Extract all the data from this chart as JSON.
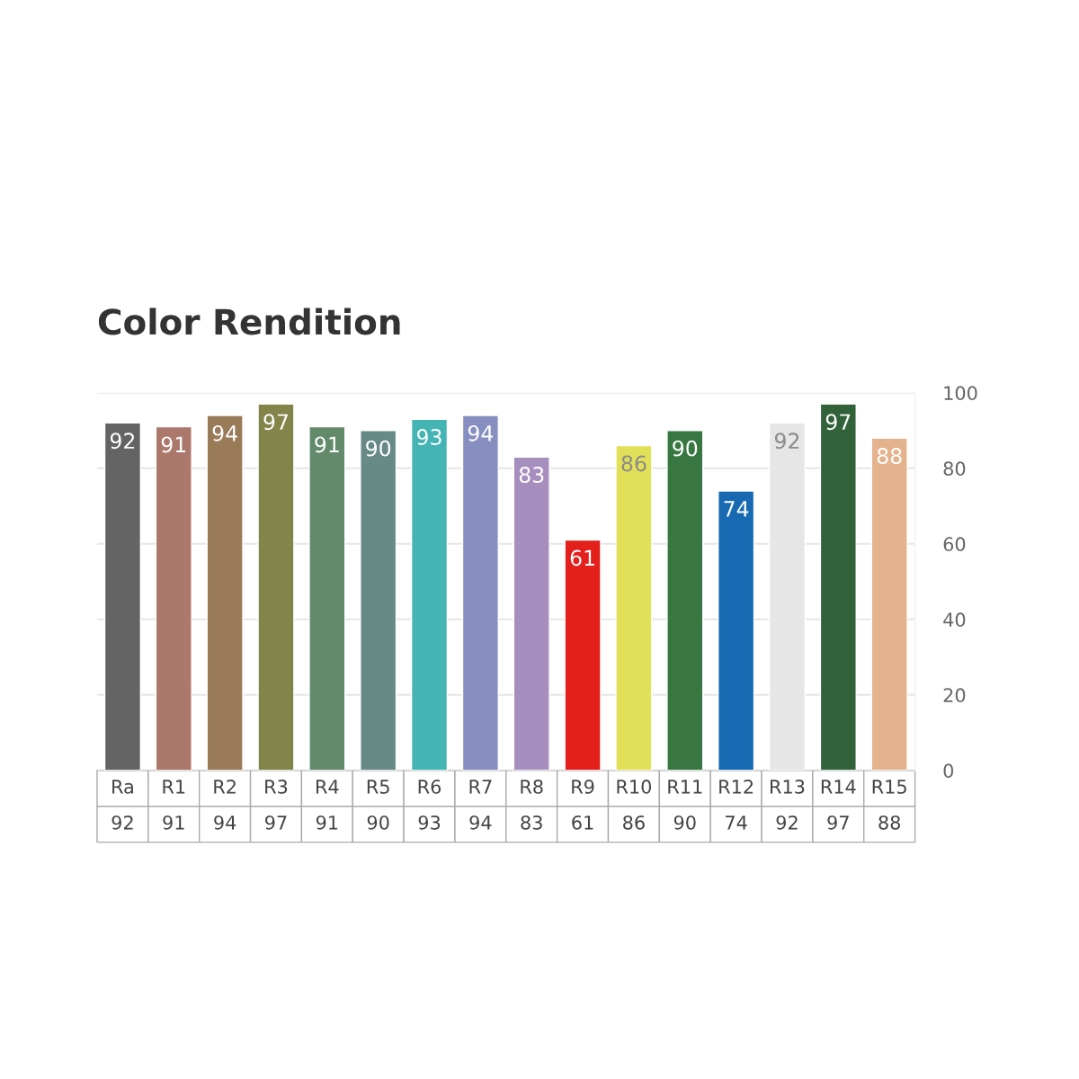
{
  "chart_data": {
    "type": "bar",
    "title": "Color Rendition",
    "categories": [
      "Ra",
      "R1",
      "R2",
      "R3",
      "R4",
      "R5",
      "R6",
      "R7",
      "R8",
      "R9",
      "R10",
      "R11",
      "R12",
      "R13",
      "R14",
      "R15"
    ],
    "values": [
      92,
      91,
      94,
      97,
      91,
      90,
      93,
      94,
      83,
      61,
      86,
      90,
      74,
      92,
      97,
      88
    ],
    "colors": [
      "#646464",
      "#ad786c",
      "#9a7b58",
      "#838449",
      "#628a6b",
      "#688a87",
      "#44b4b4",
      "#878fc0",
      "#a68fbe",
      "#e4201c",
      "#e2e058",
      "#387742",
      "#1769b2",
      "#e6e6e6",
      "#326239",
      "#e4b28c"
    ],
    "ylim": [
      0,
      100
    ],
    "yticks": [
      0,
      20,
      40,
      60,
      80,
      100
    ],
    "annotations": [
      "92",
      "91",
      "94",
      "97",
      "91",
      "90",
      "93",
      "94",
      "83",
      "61",
      "86",
      "90",
      "74",
      "92",
      "97",
      "88"
    ],
    "grid": "y",
    "data_labels": true
  }
}
